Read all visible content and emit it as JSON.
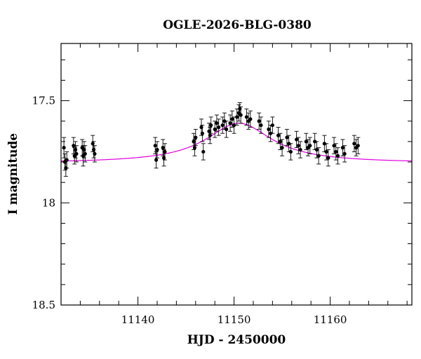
{
  "chart_data": {
    "type": "scatter",
    "title": "OGLE-2026-BLG-0380",
    "xlabel": "HJD - 2450000",
    "ylabel": "I magnitude",
    "xlim": [
      11132,
      11168.5
    ],
    "ylim": [
      18.5,
      17.22
    ],
    "y_inverted": true,
    "x_ticks": [
      11140,
      11150,
      11160
    ],
    "y_ticks": [
      "17.5",
      "18",
      "18.5"
    ],
    "x_minor_step": 2,
    "y_minor_step": 0.1,
    "grid": false,
    "series": [
      {
        "kind": "points_with_errors",
        "color": "#000000",
        "points": [
          [
            11132.3,
            17.73,
            0.05
          ],
          [
            11132.4,
            17.8,
            0.04
          ],
          [
            11132.5,
            17.83,
            0.04
          ],
          [
            11132.6,
            17.79,
            0.04
          ],
          [
            11133.3,
            17.72,
            0.04
          ],
          [
            11133.4,
            17.77,
            0.04
          ],
          [
            11133.5,
            17.74,
            0.04
          ],
          [
            11133.6,
            17.76,
            0.04
          ],
          [
            11134.2,
            17.73,
            0.04
          ],
          [
            11134.3,
            17.77,
            0.05
          ],
          [
            11134.4,
            17.74,
            0.04
          ],
          [
            11134.5,
            17.76,
            0.04
          ],
          [
            11135.3,
            17.71,
            0.04
          ],
          [
            11135.4,
            17.74,
            0.04
          ],
          [
            11135.5,
            17.76,
            0.04
          ],
          [
            11141.8,
            17.72,
            0.04
          ],
          [
            11141.9,
            17.79,
            0.04
          ],
          [
            11142.0,
            17.74,
            0.04
          ],
          [
            11142.6,
            17.73,
            0.04
          ],
          [
            11142.7,
            17.78,
            0.04
          ],
          [
            11142.8,
            17.75,
            0.04
          ],
          [
            11145.8,
            17.7,
            0.04
          ],
          [
            11145.9,
            17.73,
            0.04
          ],
          [
            11146.0,
            17.68,
            0.04
          ],
          [
            11146.6,
            17.63,
            0.04
          ],
          [
            11146.7,
            17.66,
            0.04
          ],
          [
            11146.8,
            17.75,
            0.04
          ],
          [
            11147.4,
            17.65,
            0.04
          ],
          [
            11147.5,
            17.67,
            0.04
          ],
          [
            11147.6,
            17.62,
            0.04
          ],
          [
            11148.0,
            17.64,
            0.04
          ],
          [
            11148.2,
            17.61,
            0.04
          ],
          [
            11148.4,
            17.63,
            0.04
          ],
          [
            11148.8,
            17.62,
            0.04
          ],
          [
            11149.0,
            17.6,
            0.04
          ],
          [
            11149.2,
            17.64,
            0.04
          ],
          [
            11149.6,
            17.61,
            0.04
          ],
          [
            11149.8,
            17.59,
            0.04
          ],
          [
            11150.0,
            17.62,
            0.04
          ],
          [
            11150.3,
            17.58,
            0.04
          ],
          [
            11150.5,
            17.56,
            0.04
          ],
          [
            11150.6,
            17.54,
            0.03
          ],
          [
            11150.7,
            17.57,
            0.04
          ],
          [
            11151.3,
            17.58,
            0.04
          ],
          [
            11151.5,
            17.6,
            0.04
          ],
          [
            11151.7,
            17.59,
            0.04
          ],
          [
            11152.6,
            17.6,
            0.04
          ],
          [
            11152.8,
            17.62,
            0.04
          ],
          [
            11153.6,
            17.64,
            0.04
          ],
          [
            11153.8,
            17.66,
            0.04
          ],
          [
            11154.0,
            17.62,
            0.04
          ],
          [
            11154.6,
            17.67,
            0.04
          ],
          [
            11154.8,
            17.7,
            0.04
          ],
          [
            11155.0,
            17.73,
            0.04
          ],
          [
            11155.5,
            17.68,
            0.04
          ],
          [
            11155.7,
            17.71,
            0.04
          ],
          [
            11155.9,
            17.75,
            0.04
          ],
          [
            11156.5,
            17.69,
            0.04
          ],
          [
            11156.7,
            17.72,
            0.04
          ],
          [
            11156.9,
            17.74,
            0.04
          ],
          [
            11157.5,
            17.7,
            0.04
          ],
          [
            11157.7,
            17.73,
            0.04
          ],
          [
            11157.9,
            17.72,
            0.04
          ],
          [
            11158.4,
            17.7,
            0.04
          ],
          [
            11158.6,
            17.74,
            0.04
          ],
          [
            11158.8,
            17.77,
            0.04
          ],
          [
            11159.4,
            17.71,
            0.04
          ],
          [
            11159.6,
            17.75,
            0.04
          ],
          [
            11159.8,
            17.78,
            0.04
          ],
          [
            11160.4,
            17.72,
            0.04
          ],
          [
            11160.6,
            17.75,
            0.04
          ],
          [
            11160.8,
            17.77,
            0.04
          ],
          [
            11161.3,
            17.73,
            0.04
          ],
          [
            11161.5,
            17.76,
            0.04
          ],
          [
            11162.5,
            17.71,
            0.04
          ],
          [
            11162.7,
            17.73,
            0.04
          ],
          [
            11162.9,
            17.72,
            0.04
          ]
        ]
      },
      {
        "kind": "model_curve",
        "color": "#e000e0",
        "peak_x": 11150.5,
        "peak_y": 17.61,
        "baseline_y": 17.805,
        "width": 4.2
      }
    ]
  }
}
